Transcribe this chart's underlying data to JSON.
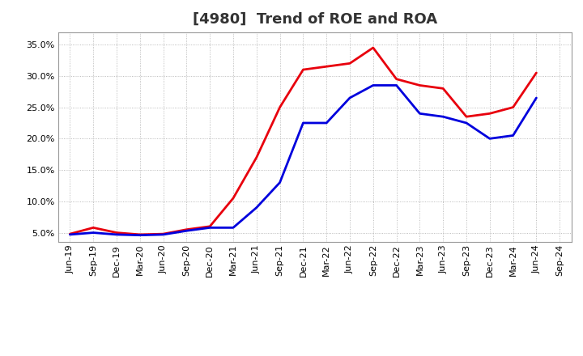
{
  "title": "[4980]  Trend of ROE and ROA",
  "x_labels": [
    "Jun-19",
    "Sep-19",
    "Dec-19",
    "Mar-20",
    "Jun-20",
    "Sep-20",
    "Dec-20",
    "Mar-21",
    "Jun-21",
    "Sep-21",
    "Dec-21",
    "Mar-22",
    "Jun-22",
    "Sep-22",
    "Dec-22",
    "Mar-23",
    "Jun-23",
    "Sep-23",
    "Dec-23",
    "Mar-24",
    "Jun-24",
    "Sep-24"
  ],
  "roe": [
    4.8,
    5.8,
    5.0,
    4.7,
    4.8,
    5.5,
    6.0,
    10.5,
    17.0,
    25.0,
    31.0,
    31.5,
    32.0,
    34.5,
    29.5,
    28.5,
    28.0,
    23.5,
    24.0,
    25.0,
    30.5,
    null
  ],
  "roa": [
    4.7,
    5.0,
    4.7,
    4.6,
    4.7,
    5.3,
    5.8,
    5.8,
    9.0,
    13.0,
    22.5,
    22.5,
    26.5,
    28.5,
    28.5,
    24.0,
    23.5,
    22.5,
    20.0,
    20.5,
    26.5,
    null
  ],
  "roe_color": "#e8000d",
  "roa_color": "#0000dd",
  "background_color": "#ffffff",
  "plot_bg_color": "#ffffff",
  "grid_color": "#aaaaaa",
  "ylim": [
    3.5,
    37
  ],
  "yticks": [
    5.0,
    10.0,
    15.0,
    20.0,
    25.0,
    30.0,
    35.0
  ],
  "line_width": 2.0,
  "title_fontsize": 13,
  "tick_fontsize": 8,
  "legend_fontsize": 10
}
